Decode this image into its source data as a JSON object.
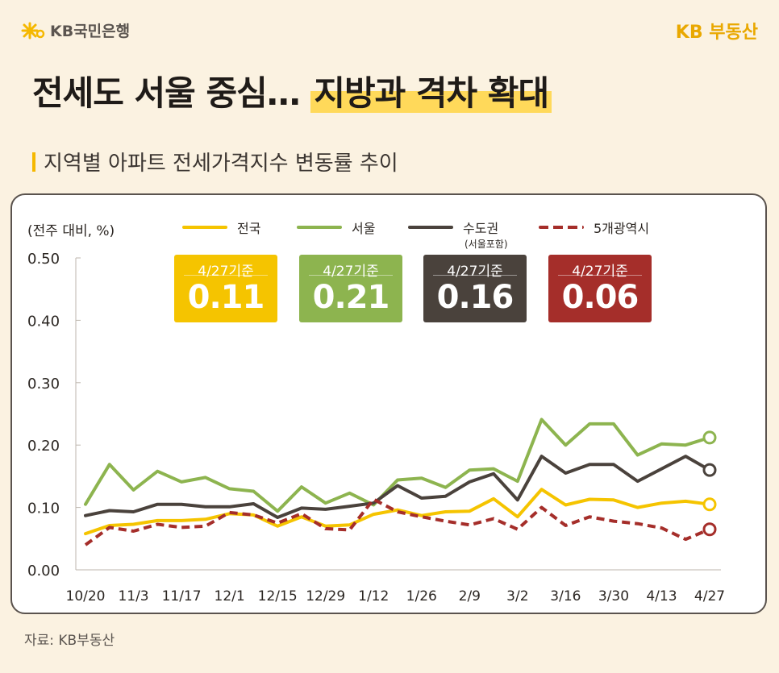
{
  "header": {
    "bank_logo": "KB국민은행",
    "brand": "KB 부동산"
  },
  "title": {
    "main": "전세도 서울 중심…",
    "highlight": "지방과 격차 확대"
  },
  "subtitle": "지역별 아파트 전세가격지수 변동률 추이",
  "source": "자료: KB부동산",
  "colors": {
    "nationwide": "#f5c400",
    "seoul": "#8db44f",
    "capital": "#4a423c",
    "metro": "#a52e2a"
  },
  "badges": [
    {
      "label": "4/27기준",
      "value": "0.11"
    },
    {
      "label": "4/27기준",
      "value": "0.21"
    },
    {
      "label": "4/27기준",
      "value": "0.16"
    },
    {
      "label": "4/27기준",
      "value": "0.06"
    }
  ],
  "chart_data": {
    "type": "line",
    "unit_label": "(전주 대비, %)",
    "ylim": [
      0,
      0.5
    ],
    "y_ticks": [
      "0.00",
      "0.10",
      "0.20",
      "0.30",
      "0.40",
      "0.50"
    ],
    "x_tick_labels": [
      "10/20",
      "11/3",
      "11/17",
      "12/1",
      "12/15",
      "12/29",
      "1/12",
      "1/26",
      "2/9",
      "3/2",
      "3/16",
      "3/30",
      "4/13",
      "4/27"
    ],
    "legend_placement": "top",
    "series": [
      {
        "name": "전국",
        "sub": "",
        "style": "solid",
        "values": [
          0.058,
          0.071,
          0.073,
          0.079,
          0.079,
          0.081,
          0.09,
          0.088,
          0.07,
          0.085,
          0.07,
          0.072,
          0.089,
          0.096,
          0.087,
          0.093,
          0.094,
          0.114,
          0.085,
          0.129,
          0.104,
          0.113,
          0.112,
          0.1,
          0.107,
          0.11,
          0.105
        ]
      },
      {
        "name": "서울",
        "sub": "",
        "style": "solid",
        "values": [
          0.105,
          0.169,
          0.128,
          0.158,
          0.141,
          0.148,
          0.13,
          0.126,
          0.094,
          0.133,
          0.107,
          0.123,
          0.104,
          0.144,
          0.147,
          0.132,
          0.16,
          0.162,
          0.142,
          0.241,
          0.2,
          0.234,
          0.234,
          0.184,
          0.202,
          0.2,
          0.212
        ]
      },
      {
        "name": "수도권",
        "sub": "(서울포함)",
        "style": "solid",
        "values": [
          0.087,
          0.095,
          0.093,
          0.105,
          0.105,
          0.101,
          0.101,
          0.106,
          0.084,
          0.099,
          0.097,
          0.102,
          0.107,
          0.135,
          0.115,
          0.118,
          0.141,
          0.154,
          0.112,
          0.182,
          0.155,
          0.169,
          0.169,
          0.142,
          0.162,
          0.182,
          0.16
        ]
      },
      {
        "name": "5개광역시",
        "sub": "",
        "style": "dashed",
        "values": [
          0.04,
          0.068,
          0.062,
          0.073,
          0.068,
          0.07,
          0.092,
          0.088,
          0.075,
          0.09,
          0.066,
          0.064,
          0.113,
          0.093,
          0.085,
          0.078,
          0.072,
          0.082,
          0.065,
          0.1,
          0.071,
          0.085,
          0.078,
          0.074,
          0.067,
          0.049,
          0.065
        ]
      }
    ]
  }
}
